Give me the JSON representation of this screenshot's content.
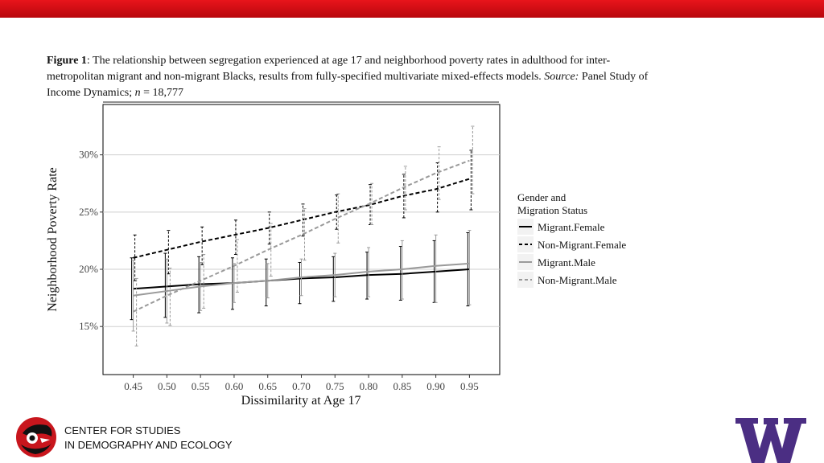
{
  "caption": {
    "label": "Figure 1",
    "text_a": ": The relationship between segregation experienced at age 17 and neighborhood poverty rates in adulthood for inter-metropolitan migrant and non-migrant Blacks, results from fully-specified multivariate mixed-effects models. ",
    "source_label": "Source:",
    "text_b": " Panel Study of Income Dynamics; ",
    "n_label": "n",
    "n_value": " = 18,777"
  },
  "footer": {
    "line1": "CENTER FOR STUDIES",
    "line2": "IN DEMOGRAPHY AND ECOLOGY"
  },
  "colors": {
    "brand_red": "#d0101a",
    "uw_purple": "#4b2e83"
  },
  "chart_data": {
    "type": "line",
    "xlabel": "Dissimilarity at Age 17",
    "ylabel": "Neighborhood Poverty Rate",
    "x": [
      0.45,
      0.5,
      0.55,
      0.6,
      0.65,
      0.7,
      0.75,
      0.8,
      0.85,
      0.9,
      0.95
    ],
    "x_tick_labels": [
      "0.45",
      "0.50",
      "0.55",
      "0.60",
      "0.65",
      "0.70",
      "0.75",
      "0.80",
      "0.85",
      "0.90",
      "0.95"
    ],
    "y_ticks": [
      15,
      20,
      25,
      30
    ],
    "y_tick_labels": [
      "15%",
      "20%",
      "25%",
      "30%"
    ],
    "xlim": [
      0.405,
      0.995
    ],
    "ylim": [
      10.8,
      34.4
    ],
    "legend_title_line1": "Gender and",
    "legend_title_line2": "Migration Status",
    "legend_position": "right",
    "grid": true,
    "series": [
      {
        "name": "Migrant.Female",
        "color": "#000000",
        "dash": "none",
        "values": [
          18.3,
          18.5,
          18.7,
          18.8,
          19.0,
          19.2,
          19.3,
          19.5,
          19.6,
          19.8,
          20.0
        ],
        "lower": [
          15.6,
          15.8,
          16.2,
          16.5,
          16.8,
          17.0,
          17.2,
          17.4,
          17.3,
          17.1,
          16.8
        ],
        "upper": [
          21.0,
          21.4,
          21.1,
          21.0,
          20.9,
          20.6,
          21.1,
          21.5,
          22.0,
          22.5,
          23.2
        ]
      },
      {
        "name": "Non-Migrant.Female",
        "color": "#000000",
        "dash": "5,3",
        "values": [
          21.0,
          21.7,
          22.4,
          23.0,
          23.6,
          24.3,
          25.0,
          25.6,
          26.4,
          27.0,
          27.9
        ],
        "lower": [
          19.0,
          19.6,
          20.4,
          21.3,
          22.2,
          22.9,
          23.5,
          23.9,
          24.5,
          25.0,
          25.2
        ],
        "upper": [
          23.0,
          23.4,
          23.7,
          24.3,
          25.0,
          25.7,
          26.5,
          27.4,
          28.3,
          29.3,
          30.4
        ]
      },
      {
        "name": "Migrant.Male",
        "color": "#9a9a9a",
        "dash": "none",
        "values": [
          17.7,
          18.1,
          18.5,
          18.8,
          19.0,
          19.3,
          19.5,
          19.8,
          20.0,
          20.3,
          20.5
        ],
        "lower": [
          14.6,
          15.3,
          16.4,
          17.1,
          17.5,
          17.7,
          17.6,
          17.6,
          17.4,
          17.1,
          16.9
        ],
        "upper": [
          20.8,
          20.9,
          20.6,
          20.5,
          20.5,
          20.9,
          21.4,
          21.9,
          22.5,
          23.0,
          23.4
        ]
      },
      {
        "name": "Non-Migrant.Male",
        "color": "#9a9a9a",
        "dash": "5,3",
        "values": [
          16.3,
          17.7,
          19.0,
          20.3,
          21.7,
          23.0,
          24.4,
          25.7,
          27.1,
          28.4,
          29.5
        ],
        "lower": [
          13.3,
          15.1,
          16.6,
          18.0,
          19.4,
          20.8,
          22.3,
          23.9,
          25.2,
          26.1,
          26.6
        ],
        "upper": [
          19.2,
          20.1,
          21.3,
          22.6,
          24.0,
          25.3,
          26.6,
          27.5,
          29.0,
          30.7,
          32.5
        ]
      }
    ]
  }
}
